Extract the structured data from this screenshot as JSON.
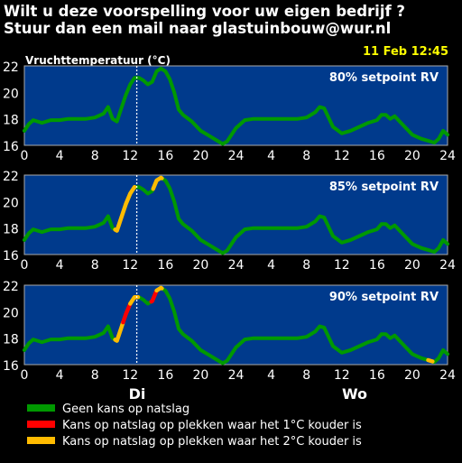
{
  "header": {
    "line1": "Wilt u deze voorspelling voor uw eigen bedrijf ?",
    "line2": "Stuur dan een mail naar glastuinbouw@wur.nl"
  },
  "timestamp": "11 Feb 12:45",
  "ylabel": "Vruchttemperatuur (°C)",
  "days": [
    "Di",
    "Wo"
  ],
  "legend": [
    {
      "label": "Geen kans op natslag",
      "color": "#009900"
    },
    {
      "label": "Kans op natslag op plekken waar het 1°C kouder is",
      "color": "#ff0000"
    },
    {
      "label": "Kans op natslag op plekken waar het 2°C kouder is",
      "color": "#ffbb00"
    }
  ],
  "colors": {
    "panel_bg": "#003a8c",
    "panel_border": "#aaaaaa",
    "line_base": "#009900",
    "line_red": "#ff0000",
    "line_orange": "#ffbb00",
    "now_line": "#ffffff",
    "timestamp": "#ffff00",
    "text": "#ffffff"
  },
  "chart_data": [
    {
      "type": "line",
      "title": "80% setpoint RV",
      "x_ticks": [
        "0",
        "4",
        "8",
        "12",
        "16",
        "20",
        "24",
        "4",
        "8",
        "12",
        "16",
        "20",
        "24"
      ],
      "y_ticks": [
        16,
        18,
        20,
        22
      ],
      "ylim": [
        16,
        22
      ],
      "xlim": [
        0,
        48
      ],
      "now_x": 12.75,
      "series": [
        {
          "x": [
            0,
            0.5,
            1,
            1.5,
            2,
            3,
            4,
            5,
            6,
            7,
            8,
            9,
            9.5,
            10,
            10.5,
            11,
            11.5,
            12,
            12.5,
            13,
            13.5,
            14,
            14.5,
            15,
            15.5,
            16,
            16.5,
            17,
            17.5,
            18,
            19,
            20,
            21,
            22,
            22.5,
            23,
            24,
            25,
            26,
            27,
            28,
            29,
            30,
            31,
            32,
            33,
            33.5,
            34,
            34.5,
            35,
            36,
            37,
            38,
            39,
            40,
            40.5,
            41,
            41.5,
            42,
            43,
            44,
            45,
            46,
            46.5,
            47,
            47.5,
            48
          ],
          "y": [
            17.1,
            17.6,
            17.9,
            17.8,
            17.7,
            17.9,
            17.9,
            18.0,
            18.0,
            18.0,
            18.1,
            18.4,
            18.9,
            18.0,
            17.8,
            18.8,
            19.8,
            20.6,
            21.1,
            21.1,
            20.9,
            20.6,
            20.8,
            21.6,
            21.8,
            21.6,
            21.0,
            20.0,
            18.7,
            18.3,
            17.8,
            17.1,
            16.7,
            16.3,
            16.1,
            16.3,
            17.3,
            17.9,
            18.0,
            18.0,
            18.0,
            18.0,
            18.0,
            18.0,
            18.1,
            18.5,
            18.9,
            18.8,
            18.1,
            17.4,
            16.9,
            17.1,
            17.4,
            17.7,
            17.9,
            18.3,
            18.3,
            18.0,
            18.2,
            17.5,
            16.8,
            16.5,
            16.3,
            16.2,
            16.5,
            17.1,
            16.8
          ],
          "segments": []
        }
      ]
    },
    {
      "type": "line",
      "title": "85% setpoint RV",
      "x_ticks": [
        "0",
        "4",
        "8",
        "12",
        "16",
        "20",
        "24",
        "4",
        "8",
        "12",
        "16",
        "20",
        "24"
      ],
      "y_ticks": [
        16,
        18,
        20,
        22
      ],
      "ylim": [
        16,
        22
      ],
      "xlim": [
        0,
        48
      ],
      "now_x": 12.75,
      "series": [
        {
          "x": [
            0,
            0.5,
            1,
            1.5,
            2,
            3,
            4,
            5,
            6,
            7,
            8,
            9,
            9.5,
            10,
            10.5,
            11,
            11.5,
            12,
            12.5,
            13,
            13.5,
            14,
            14.5,
            15,
            15.5,
            16,
            16.5,
            17,
            17.5,
            18,
            19,
            20,
            21,
            22,
            22.5,
            23,
            24,
            25,
            26,
            27,
            28,
            29,
            30,
            31,
            32,
            33,
            33.5,
            34,
            34.5,
            35,
            36,
            37,
            38,
            39,
            40,
            40.5,
            41,
            41.5,
            42,
            43,
            44,
            45,
            46,
            46.5,
            47,
            47.5,
            48
          ],
          "y": [
            17.1,
            17.6,
            17.9,
            17.8,
            17.7,
            17.9,
            17.9,
            18.0,
            18.0,
            18.0,
            18.1,
            18.4,
            18.9,
            18.0,
            17.8,
            18.8,
            19.8,
            20.6,
            21.1,
            21.1,
            20.9,
            20.6,
            20.8,
            21.6,
            21.8,
            21.6,
            21.0,
            20.0,
            18.7,
            18.3,
            17.8,
            17.1,
            16.7,
            16.3,
            16.1,
            16.3,
            17.3,
            17.9,
            18.0,
            18.0,
            18.0,
            18.0,
            18.0,
            18.0,
            18.1,
            18.5,
            18.9,
            18.8,
            18.1,
            17.4,
            16.9,
            17.1,
            17.4,
            17.7,
            17.9,
            18.3,
            18.3,
            18.0,
            18.2,
            17.5,
            16.8,
            16.5,
            16.3,
            16.2,
            16.5,
            17.1,
            16.8
          ],
          "segments": [
            {
              "from": 10.3,
              "to": 12.5,
              "color": "#ffbb00"
            },
            {
              "from": 14.6,
              "to": 15.6,
              "color": "#ffbb00"
            }
          ]
        }
      ]
    },
    {
      "type": "line",
      "title": "90% setpoint RV",
      "x_ticks": [
        "0",
        "4",
        "8",
        "12",
        "16",
        "20",
        "24",
        "4",
        "8",
        "12",
        "16",
        "20",
        "24"
      ],
      "y_ticks": [
        16,
        18,
        20,
        22
      ],
      "ylim": [
        16,
        22
      ],
      "xlim": [
        0,
        48
      ],
      "now_x": 12.75,
      "series": [
        {
          "x": [
            0,
            0.5,
            1,
            1.5,
            2,
            3,
            4,
            5,
            6,
            7,
            8,
            9,
            9.5,
            10,
            10.5,
            11,
            11.5,
            12,
            12.5,
            13,
            13.5,
            14,
            14.5,
            15,
            15.5,
            16,
            16.5,
            17,
            17.5,
            18,
            19,
            20,
            21,
            22,
            22.5,
            23,
            24,
            25,
            26,
            27,
            28,
            29,
            30,
            31,
            32,
            33,
            33.5,
            34,
            34.5,
            35,
            36,
            37,
            38,
            39,
            40,
            40.5,
            41,
            41.5,
            42,
            43,
            44,
            45,
            46,
            46.5,
            47,
            47.5,
            48
          ],
          "y": [
            17.1,
            17.6,
            17.9,
            17.8,
            17.7,
            17.9,
            17.9,
            18.0,
            18.0,
            18.0,
            18.1,
            18.4,
            18.9,
            18.0,
            17.8,
            18.8,
            19.8,
            20.6,
            21.1,
            21.1,
            20.9,
            20.6,
            20.8,
            21.6,
            21.8,
            21.6,
            21.0,
            20.0,
            18.7,
            18.3,
            17.8,
            17.1,
            16.7,
            16.3,
            16.1,
            16.3,
            17.3,
            17.9,
            18.0,
            18.0,
            18.0,
            18.0,
            18.0,
            18.0,
            18.1,
            18.5,
            18.9,
            18.8,
            18.1,
            17.4,
            16.9,
            17.1,
            17.4,
            17.7,
            17.9,
            18.3,
            18.3,
            18.0,
            18.2,
            17.5,
            16.8,
            16.5,
            16.3,
            16.2,
            16.5,
            17.1,
            16.8
          ],
          "segments": [
            {
              "from": 10.3,
              "to": 11.2,
              "color": "#ffbb00"
            },
            {
              "from": 11.2,
              "to": 12.0,
              "color": "#ff0000"
            },
            {
              "from": 12.0,
              "to": 12.9,
              "color": "#ffbb00"
            },
            {
              "from": 14.4,
              "to": 15.0,
              "color": "#ff0000"
            },
            {
              "from": 15.0,
              "to": 15.6,
              "color": "#ffbb00"
            },
            {
              "from": 45.8,
              "to": 46.3,
              "color": "#ffbb00"
            }
          ]
        }
      ]
    }
  ]
}
